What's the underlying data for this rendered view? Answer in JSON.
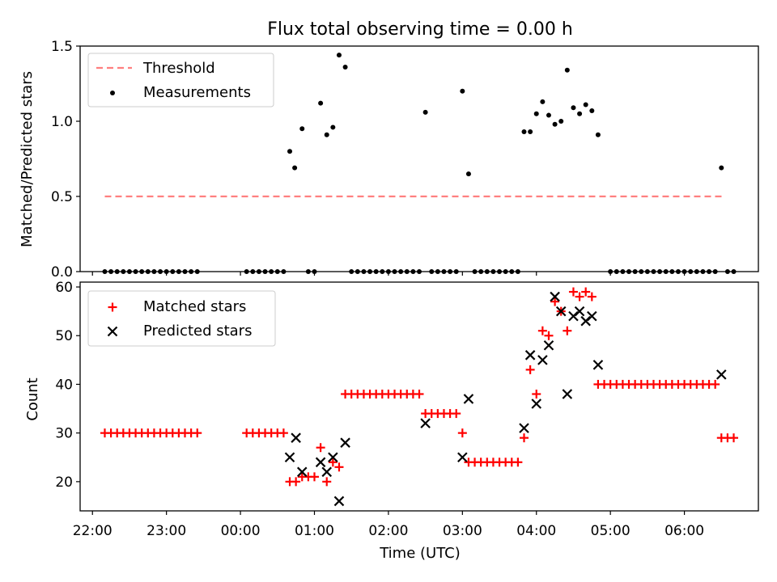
{
  "figure": {
    "title": "Flux total observing time = 0.00 h",
    "xlabel": "Time (UTC)"
  },
  "chart_data": [
    {
      "type": "scatter",
      "ylabel": "Matched/Predicted stars",
      "ylim": [
        0,
        1.5
      ],
      "yticks": [
        0.0,
        0.5,
        1.0,
        1.5
      ],
      "ytick_labels": [
        "0.0",
        "0.5",
        "1.0",
        "1.5"
      ],
      "xlim": [
        "21:50",
        "07:00"
      ],
      "grid": false,
      "legend_position": "upper-left",
      "threshold": {
        "name": "Threshold",
        "value": 0.5,
        "x_start": "22:10",
        "x_end": "06:32",
        "color": "#ff7f7f"
      },
      "series": [
        {
          "name": "Measurements",
          "color": "#000000",
          "marker": "dot",
          "points": [
            [
              "22:10",
              0
            ],
            [
              "22:15",
              0
            ],
            [
              "22:20",
              0
            ],
            [
              "22:25",
              0
            ],
            [
              "22:30",
              0
            ],
            [
              "22:35",
              0
            ],
            [
              "22:40",
              0
            ],
            [
              "22:45",
              0
            ],
            [
              "22:50",
              0
            ],
            [
              "22:55",
              0
            ],
            [
              "23:00",
              0
            ],
            [
              "23:05",
              0
            ],
            [
              "23:10",
              0
            ],
            [
              "23:15",
              0
            ],
            [
              "23:20",
              0
            ],
            [
              "23:25",
              0
            ],
            [
              "00:05",
              0
            ],
            [
              "00:10",
              0
            ],
            [
              "00:15",
              0
            ],
            [
              "00:20",
              0
            ],
            [
              "00:25",
              0
            ],
            [
              "00:30",
              0
            ],
            [
              "00:35",
              0
            ],
            [
              "00:40",
              0.8
            ],
            [
              "00:44",
              0.69
            ],
            [
              "00:50",
              0.95
            ],
            [
              "00:55",
              0
            ],
            [
              "01:00",
              0
            ],
            [
              "01:05",
              1.12
            ],
            [
              "01:10",
              0.91
            ],
            [
              "01:15",
              0.96
            ],
            [
              "01:20",
              1.44
            ],
            [
              "01:25",
              1.36
            ],
            [
              "01:30",
              0
            ],
            [
              "01:35",
              0
            ],
            [
              "01:40",
              0
            ],
            [
              "01:45",
              0
            ],
            [
              "01:50",
              0
            ],
            [
              "01:55",
              0
            ],
            [
              "02:00",
              0
            ],
            [
              "02:05",
              0
            ],
            [
              "02:10",
              0
            ],
            [
              "02:15",
              0
            ],
            [
              "02:20",
              0
            ],
            [
              "02:25",
              0
            ],
            [
              "02:30",
              1.06
            ],
            [
              "02:35",
              0
            ],
            [
              "02:40",
              0
            ],
            [
              "02:45",
              0
            ],
            [
              "02:50",
              0
            ],
            [
              "02:55",
              0
            ],
            [
              "03:00",
              1.2
            ],
            [
              "03:05",
              0.65
            ],
            [
              "03:10",
              0
            ],
            [
              "03:15",
              0
            ],
            [
              "03:20",
              0
            ],
            [
              "03:25",
              0
            ],
            [
              "03:30",
              0
            ],
            [
              "03:35",
              0
            ],
            [
              "03:40",
              0
            ],
            [
              "03:45",
              0
            ],
            [
              "03:50",
              0.93
            ],
            [
              "03:55",
              0.93
            ],
            [
              "04:00",
              1.05
            ],
            [
              "04:05",
              1.13
            ],
            [
              "04:10",
              1.04
            ],
            [
              "04:15",
              0.98
            ],
            [
              "04:20",
              1.0
            ],
            [
              "04:25",
              1.34
            ],
            [
              "04:30",
              1.09
            ],
            [
              "04:35",
              1.05
            ],
            [
              "04:40",
              1.11
            ],
            [
              "04:45",
              1.07
            ],
            [
              "04:50",
              0.91
            ],
            [
              "05:00",
              0
            ],
            [
              "05:05",
              0
            ],
            [
              "05:10",
              0
            ],
            [
              "05:15",
              0
            ],
            [
              "05:20",
              0
            ],
            [
              "05:25",
              0
            ],
            [
              "05:30",
              0
            ],
            [
              "05:35",
              0
            ],
            [
              "05:40",
              0
            ],
            [
              "05:45",
              0
            ],
            [
              "05:50",
              0
            ],
            [
              "05:55",
              0
            ],
            [
              "06:00",
              0
            ],
            [
              "06:05",
              0
            ],
            [
              "06:10",
              0
            ],
            [
              "06:15",
              0
            ],
            [
              "06:20",
              0
            ],
            [
              "06:25",
              0
            ],
            [
              "06:30",
              0.69
            ],
            [
              "06:35",
              0
            ],
            [
              "06:40",
              0
            ]
          ]
        }
      ]
    },
    {
      "type": "scatter",
      "ylabel": "Count",
      "ylim": [
        14,
        61
      ],
      "yticks": [
        20,
        30,
        40,
        50,
        60
      ],
      "ytick_labels": [
        "20",
        "30",
        "40",
        "50",
        "60"
      ],
      "xlim": [
        "21:50",
        "07:00"
      ],
      "xticks": [
        "22:00",
        "23:00",
        "00:00",
        "01:00",
        "02:00",
        "03:00",
        "04:00",
        "05:00",
        "06:00"
      ],
      "xtick_labels": [
        "22:00",
        "23:00",
        "00:00",
        "01:00",
        "02:00",
        "03:00",
        "04:00",
        "05:00",
        "06:00"
      ],
      "grid": false,
      "legend_position": "upper-left",
      "series": [
        {
          "name": "Matched stars",
          "color": "#ff0000",
          "marker": "plus",
          "points": [
            [
              "22:10",
              30
            ],
            [
              "22:15",
              30
            ],
            [
              "22:20",
              30
            ],
            [
              "22:25",
              30
            ],
            [
              "22:30",
              30
            ],
            [
              "22:35",
              30
            ],
            [
              "22:40",
              30
            ],
            [
              "22:45",
              30
            ],
            [
              "22:50",
              30
            ],
            [
              "22:55",
              30
            ],
            [
              "23:00",
              30
            ],
            [
              "23:05",
              30
            ],
            [
              "23:10",
              30
            ],
            [
              "23:15",
              30
            ],
            [
              "23:20",
              30
            ],
            [
              "23:25",
              30
            ],
            [
              "00:05",
              30
            ],
            [
              "00:10",
              30
            ],
            [
              "00:15",
              30
            ],
            [
              "00:20",
              30
            ],
            [
              "00:25",
              30
            ],
            [
              "00:30",
              30
            ],
            [
              "00:35",
              30
            ],
            [
              "00:40",
              20
            ],
            [
              "00:45",
              20
            ],
            [
              "00:50",
              21
            ],
            [
              "00:55",
              21
            ],
            [
              "01:00",
              21
            ],
            [
              "01:05",
              27
            ],
            [
              "01:10",
              20
            ],
            [
              "01:15",
              24
            ],
            [
              "01:20",
              23
            ],
            [
              "01:25",
              38
            ],
            [
              "01:30",
              38
            ],
            [
              "01:35",
              38
            ],
            [
              "01:40",
              38
            ],
            [
              "01:45",
              38
            ],
            [
              "01:50",
              38
            ],
            [
              "01:55",
              38
            ],
            [
              "02:00",
              38
            ],
            [
              "02:05",
              38
            ],
            [
              "02:10",
              38
            ],
            [
              "02:15",
              38
            ],
            [
              "02:20",
              38
            ],
            [
              "02:25",
              38
            ],
            [
              "02:30",
              34
            ],
            [
              "02:35",
              34
            ],
            [
              "02:40",
              34
            ],
            [
              "02:45",
              34
            ],
            [
              "02:50",
              34
            ],
            [
              "02:55",
              34
            ],
            [
              "03:00",
              30
            ],
            [
              "03:05",
              24
            ],
            [
              "03:10",
              24
            ],
            [
              "03:15",
              24
            ],
            [
              "03:20",
              24
            ],
            [
              "03:25",
              24
            ],
            [
              "03:30",
              24
            ],
            [
              "03:35",
              24
            ],
            [
              "03:40",
              24
            ],
            [
              "03:45",
              24
            ],
            [
              "03:50",
              29
            ],
            [
              "03:55",
              43
            ],
            [
              "04:00",
              38
            ],
            [
              "04:05",
              51
            ],
            [
              "04:10",
              50
            ],
            [
              "04:15",
              57
            ],
            [
              "04:20",
              55
            ],
            [
              "04:25",
              51
            ],
            [
              "04:30",
              59
            ],
            [
              "04:35",
              58
            ],
            [
              "04:40",
              59
            ],
            [
              "04:45",
              58
            ],
            [
              "04:50",
              40
            ],
            [
              "04:55",
              40
            ],
            [
              "05:00",
              40
            ],
            [
              "05:05",
              40
            ],
            [
              "05:10",
              40
            ],
            [
              "05:15",
              40
            ],
            [
              "05:20",
              40
            ],
            [
              "05:25",
              40
            ],
            [
              "05:30",
              40
            ],
            [
              "05:35",
              40
            ],
            [
              "05:40",
              40
            ],
            [
              "05:45",
              40
            ],
            [
              "05:50",
              40
            ],
            [
              "05:55",
              40
            ],
            [
              "06:00",
              40
            ],
            [
              "06:05",
              40
            ],
            [
              "06:10",
              40
            ],
            [
              "06:15",
              40
            ],
            [
              "06:20",
              40
            ],
            [
              "06:25",
              40
            ],
            [
              "06:30",
              29
            ],
            [
              "06:35",
              29
            ],
            [
              "06:40",
              29
            ]
          ]
        },
        {
          "name": "Predicted stars",
          "color": "#000000",
          "marker": "x",
          "points": [
            [
              "00:40",
              25
            ],
            [
              "00:45",
              29
            ],
            [
              "00:50",
              22
            ],
            [
              "01:05",
              24
            ],
            [
              "01:10",
              22
            ],
            [
              "01:15",
              25
            ],
            [
              "01:20",
              16
            ],
            [
              "01:25",
              28
            ],
            [
              "02:30",
              32
            ],
            [
              "03:00",
              25
            ],
            [
              "03:05",
              37
            ],
            [
              "03:50",
              31
            ],
            [
              "03:55",
              46
            ],
            [
              "04:00",
              36
            ],
            [
              "04:05",
              45
            ],
            [
              "04:10",
              48
            ],
            [
              "04:15",
              58
            ],
            [
              "04:20",
              55
            ],
            [
              "04:25",
              38
            ],
            [
              "04:30",
              54
            ],
            [
              "04:35",
              55
            ],
            [
              "04:40",
              53
            ],
            [
              "04:45",
              54
            ],
            [
              "04:50",
              44
            ],
            [
              "06:30",
              42
            ]
          ]
        }
      ]
    }
  ]
}
